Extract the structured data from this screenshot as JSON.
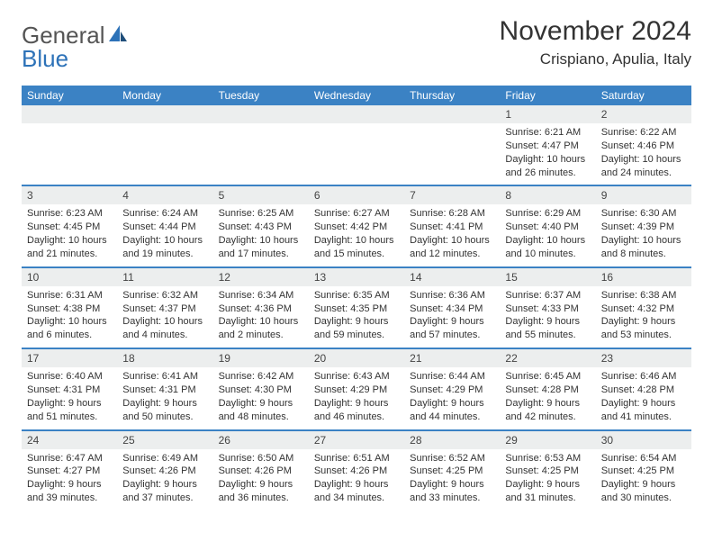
{
  "brand": {
    "part1": "General",
    "part2": "Blue"
  },
  "title": "November 2024",
  "subtitle": "Crispiano, Apulia, Italy",
  "colors": {
    "header_bg": "#3b82c4",
    "header_text": "#ffffff",
    "daynum_bg": "#eceeee",
    "row_border": "#3b82c4",
    "body_text": "#333333"
  },
  "layout": {
    "columns": 7,
    "rows": 5,
    "fontsize_body": 11,
    "fontsize_header": 12
  },
  "dayHeaders": [
    "Sunday",
    "Monday",
    "Tuesday",
    "Wednesday",
    "Thursday",
    "Friday",
    "Saturday"
  ],
  "weeks": [
    [
      {
        "day": ""
      },
      {
        "day": ""
      },
      {
        "day": ""
      },
      {
        "day": ""
      },
      {
        "day": ""
      },
      {
        "day": "1",
        "sunrise": "Sunrise: 6:21 AM",
        "sunset": "Sunset: 4:47 PM",
        "dl1": "Daylight: 10 hours",
        "dl2": "and 26 minutes."
      },
      {
        "day": "2",
        "sunrise": "Sunrise: 6:22 AM",
        "sunset": "Sunset: 4:46 PM",
        "dl1": "Daylight: 10 hours",
        "dl2": "and 24 minutes."
      }
    ],
    [
      {
        "day": "3",
        "sunrise": "Sunrise: 6:23 AM",
        "sunset": "Sunset: 4:45 PM",
        "dl1": "Daylight: 10 hours",
        "dl2": "and 21 minutes."
      },
      {
        "day": "4",
        "sunrise": "Sunrise: 6:24 AM",
        "sunset": "Sunset: 4:44 PM",
        "dl1": "Daylight: 10 hours",
        "dl2": "and 19 minutes."
      },
      {
        "day": "5",
        "sunrise": "Sunrise: 6:25 AM",
        "sunset": "Sunset: 4:43 PM",
        "dl1": "Daylight: 10 hours",
        "dl2": "and 17 minutes."
      },
      {
        "day": "6",
        "sunrise": "Sunrise: 6:27 AM",
        "sunset": "Sunset: 4:42 PM",
        "dl1": "Daylight: 10 hours",
        "dl2": "and 15 minutes."
      },
      {
        "day": "7",
        "sunrise": "Sunrise: 6:28 AM",
        "sunset": "Sunset: 4:41 PM",
        "dl1": "Daylight: 10 hours",
        "dl2": "and 12 minutes."
      },
      {
        "day": "8",
        "sunrise": "Sunrise: 6:29 AM",
        "sunset": "Sunset: 4:40 PM",
        "dl1": "Daylight: 10 hours",
        "dl2": "and 10 minutes."
      },
      {
        "day": "9",
        "sunrise": "Sunrise: 6:30 AM",
        "sunset": "Sunset: 4:39 PM",
        "dl1": "Daylight: 10 hours",
        "dl2": "and 8 minutes."
      }
    ],
    [
      {
        "day": "10",
        "sunrise": "Sunrise: 6:31 AM",
        "sunset": "Sunset: 4:38 PM",
        "dl1": "Daylight: 10 hours",
        "dl2": "and 6 minutes."
      },
      {
        "day": "11",
        "sunrise": "Sunrise: 6:32 AM",
        "sunset": "Sunset: 4:37 PM",
        "dl1": "Daylight: 10 hours",
        "dl2": "and 4 minutes."
      },
      {
        "day": "12",
        "sunrise": "Sunrise: 6:34 AM",
        "sunset": "Sunset: 4:36 PM",
        "dl1": "Daylight: 10 hours",
        "dl2": "and 2 minutes."
      },
      {
        "day": "13",
        "sunrise": "Sunrise: 6:35 AM",
        "sunset": "Sunset: 4:35 PM",
        "dl1": "Daylight: 9 hours",
        "dl2": "and 59 minutes."
      },
      {
        "day": "14",
        "sunrise": "Sunrise: 6:36 AM",
        "sunset": "Sunset: 4:34 PM",
        "dl1": "Daylight: 9 hours",
        "dl2": "and 57 minutes."
      },
      {
        "day": "15",
        "sunrise": "Sunrise: 6:37 AM",
        "sunset": "Sunset: 4:33 PM",
        "dl1": "Daylight: 9 hours",
        "dl2": "and 55 minutes."
      },
      {
        "day": "16",
        "sunrise": "Sunrise: 6:38 AM",
        "sunset": "Sunset: 4:32 PM",
        "dl1": "Daylight: 9 hours",
        "dl2": "and 53 minutes."
      }
    ],
    [
      {
        "day": "17",
        "sunrise": "Sunrise: 6:40 AM",
        "sunset": "Sunset: 4:31 PM",
        "dl1": "Daylight: 9 hours",
        "dl2": "and 51 minutes."
      },
      {
        "day": "18",
        "sunrise": "Sunrise: 6:41 AM",
        "sunset": "Sunset: 4:31 PM",
        "dl1": "Daylight: 9 hours",
        "dl2": "and 50 minutes."
      },
      {
        "day": "19",
        "sunrise": "Sunrise: 6:42 AM",
        "sunset": "Sunset: 4:30 PM",
        "dl1": "Daylight: 9 hours",
        "dl2": "and 48 minutes."
      },
      {
        "day": "20",
        "sunrise": "Sunrise: 6:43 AM",
        "sunset": "Sunset: 4:29 PM",
        "dl1": "Daylight: 9 hours",
        "dl2": "and 46 minutes."
      },
      {
        "day": "21",
        "sunrise": "Sunrise: 6:44 AM",
        "sunset": "Sunset: 4:29 PM",
        "dl1": "Daylight: 9 hours",
        "dl2": "and 44 minutes."
      },
      {
        "day": "22",
        "sunrise": "Sunrise: 6:45 AM",
        "sunset": "Sunset: 4:28 PM",
        "dl1": "Daylight: 9 hours",
        "dl2": "and 42 minutes."
      },
      {
        "day": "23",
        "sunrise": "Sunrise: 6:46 AM",
        "sunset": "Sunset: 4:28 PM",
        "dl1": "Daylight: 9 hours",
        "dl2": "and 41 minutes."
      }
    ],
    [
      {
        "day": "24",
        "sunrise": "Sunrise: 6:47 AM",
        "sunset": "Sunset: 4:27 PM",
        "dl1": "Daylight: 9 hours",
        "dl2": "and 39 minutes."
      },
      {
        "day": "25",
        "sunrise": "Sunrise: 6:49 AM",
        "sunset": "Sunset: 4:26 PM",
        "dl1": "Daylight: 9 hours",
        "dl2": "and 37 minutes."
      },
      {
        "day": "26",
        "sunrise": "Sunrise: 6:50 AM",
        "sunset": "Sunset: 4:26 PM",
        "dl1": "Daylight: 9 hours",
        "dl2": "and 36 minutes."
      },
      {
        "day": "27",
        "sunrise": "Sunrise: 6:51 AM",
        "sunset": "Sunset: 4:26 PM",
        "dl1": "Daylight: 9 hours",
        "dl2": "and 34 minutes."
      },
      {
        "day": "28",
        "sunrise": "Sunrise: 6:52 AM",
        "sunset": "Sunset: 4:25 PM",
        "dl1": "Daylight: 9 hours",
        "dl2": "and 33 minutes."
      },
      {
        "day": "29",
        "sunrise": "Sunrise: 6:53 AM",
        "sunset": "Sunset: 4:25 PM",
        "dl1": "Daylight: 9 hours",
        "dl2": "and 31 minutes."
      },
      {
        "day": "30",
        "sunrise": "Sunrise: 6:54 AM",
        "sunset": "Sunset: 4:25 PM",
        "dl1": "Daylight: 9 hours",
        "dl2": "and 30 minutes."
      }
    ]
  ]
}
